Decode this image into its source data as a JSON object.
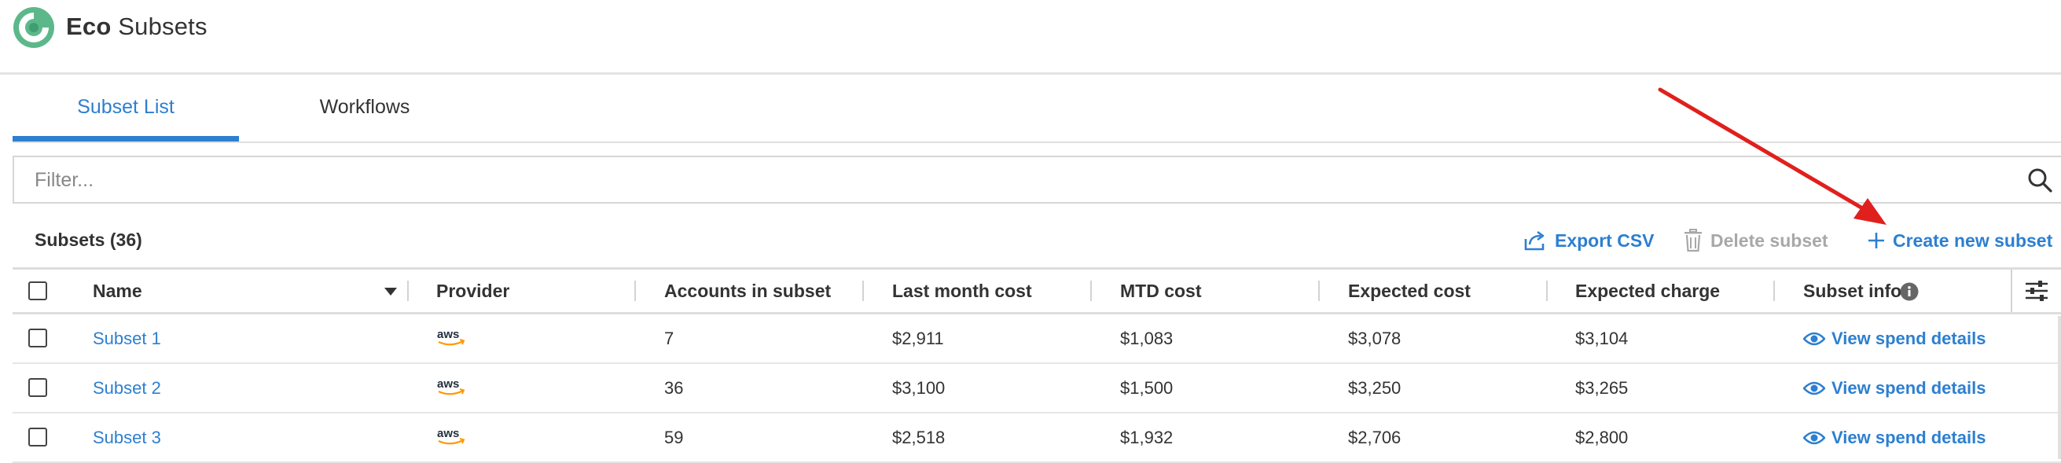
{
  "app": {
    "name_bold": "Eco",
    "name_rest": " Subsets"
  },
  "tabs": [
    {
      "label": "Subset List",
      "active": true
    },
    {
      "label": "Workflows",
      "active": false
    }
  ],
  "filter": {
    "placeholder": "Filter...",
    "value": ""
  },
  "toolbar": {
    "count_label": "Subsets (36)",
    "export_label": "Export CSV",
    "delete_label": "Delete subset",
    "create_label": "Create new subset"
  },
  "table": {
    "columns": [
      "Name",
      "Provider",
      "Accounts in subset",
      "Last month cost",
      "MTD cost",
      "Expected cost",
      "Expected charge",
      "Subset info"
    ],
    "rows": [
      {
        "name": "Subset 1",
        "provider": "aws",
        "accounts": "7",
        "last_month": "$2,911",
        "mtd": "$1,083",
        "expected_cost": "$3,078",
        "expected_charge": "$3,104",
        "info": "View spend details"
      },
      {
        "name": "Subset 2",
        "provider": "aws",
        "accounts": "36",
        "last_month": "$3,100",
        "mtd": "$1,500",
        "expected_cost": "$3,250",
        "expected_charge": "$3,265",
        "info": "View spend details"
      },
      {
        "name": "Subset 3",
        "provider": "aws",
        "accounts": "59",
        "last_month": "$2,518",
        "mtd": "$1,932",
        "expected_cost": "$2,706",
        "expected_charge": "$2,800",
        "info": "View spend details"
      }
    ]
  },
  "colors": {
    "accent": "#2d7fd0",
    "brand_green": "#5cb88a",
    "disabled": "#a8a8a8",
    "annotation": "#e0201c"
  },
  "icons": [
    "eco-logo-icon",
    "search-icon",
    "export-icon",
    "trash-icon",
    "plus-icon",
    "sort-down-icon",
    "info-icon",
    "column-settings-icon",
    "aws-logo-icon",
    "eye-icon"
  ]
}
